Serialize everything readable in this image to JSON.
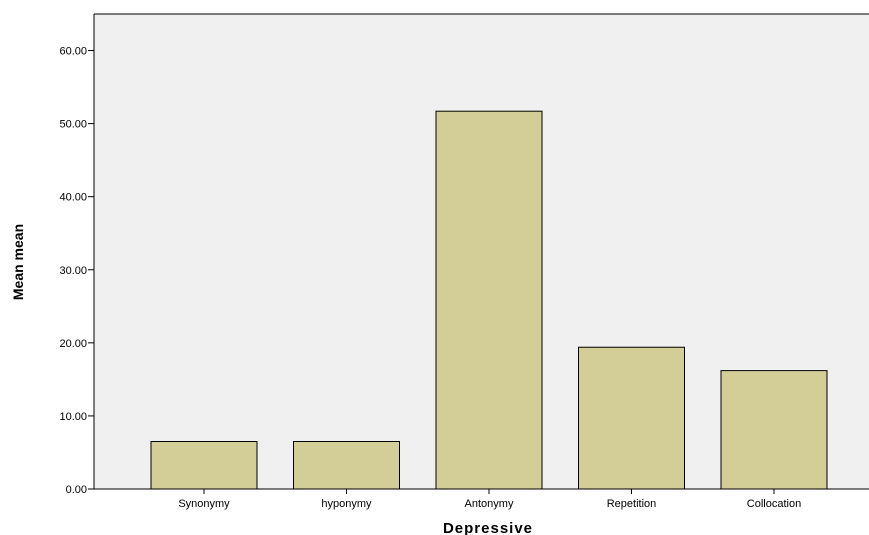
{
  "chart_data": {
    "type": "bar",
    "categories": [
      "Synonymy",
      "hyponymy",
      "Antonymy",
      "Repetition",
      "Collocation"
    ],
    "values": [
      6.5,
      6.5,
      51.7,
      19.4,
      16.2
    ],
    "xlabel": "Depressive",
    "ylabel": "Mean mean",
    "ylim": [
      0,
      65
    ],
    "yticks": [
      "0.00",
      "10.00",
      "20.00",
      "30.00",
      "40.00",
      "50.00",
      "60.00"
    ],
    "grid": false,
    "colors": {
      "bar_fill": "#d3cd97",
      "bar_stroke": "#000000",
      "plot_background": "#f0f0f0",
      "axis": "#000000"
    }
  }
}
